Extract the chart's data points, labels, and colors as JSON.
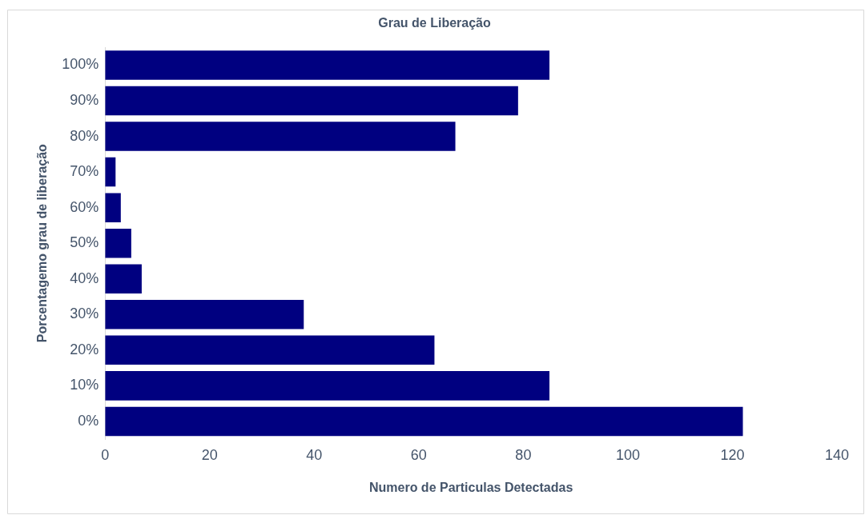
{
  "chart_data": {
    "type": "bar",
    "orientation": "horizontal",
    "title": "Grau de Liberação",
    "xlabel": "Numero de Particulas Detectadas",
    "ylabel": "Porcentagemo grau de liberação",
    "categories": [
      "100%",
      "90%",
      "80%",
      "70%",
      "60%",
      "50%",
      "40%",
      "30%",
      "20%",
      "10%",
      "0%"
    ],
    "values": [
      85,
      79,
      67,
      2,
      3,
      5,
      7,
      38,
      63,
      85,
      122
    ],
    "color": "#000080",
    "xlim": [
      0,
      140
    ],
    "xticks": [
      0,
      20,
      40,
      60,
      80,
      100,
      120,
      140
    ],
    "grid": false,
    "legend": false
  }
}
